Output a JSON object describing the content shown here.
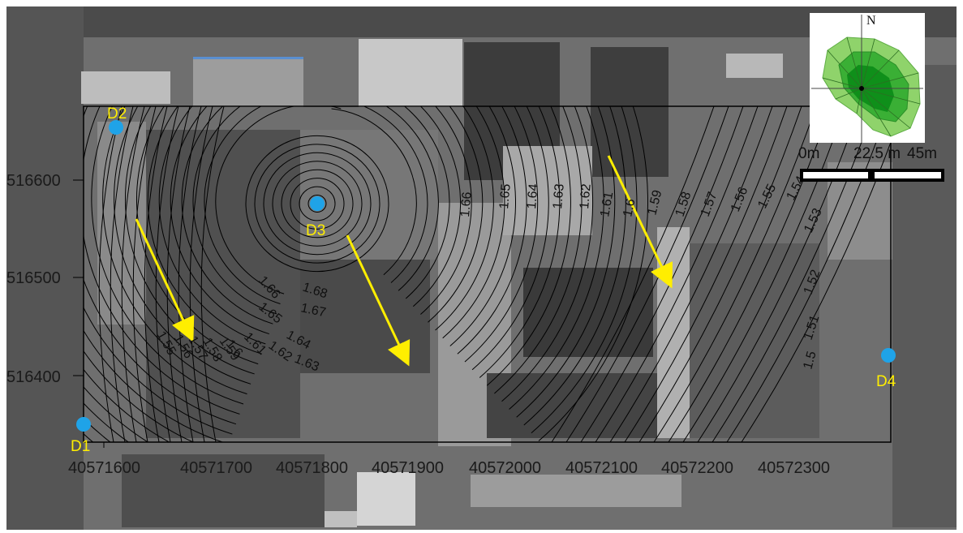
{
  "x_ticks": [
    "40571600",
    "40571700",
    "40571800",
    "40571900",
    "40572000",
    "40572100",
    "40572200",
    "40572300"
  ],
  "y_ticks": [
    "516600",
    "516500",
    "516400"
  ],
  "wells": [
    {
      "id": "D1",
      "label": "D1"
    },
    {
      "id": "D2",
      "label": "D2"
    },
    {
      "id": "D3",
      "label": "D3"
    },
    {
      "id": "D4",
      "label": "D4"
    }
  ],
  "contour_labels": [
    "1.55",
    "1.56",
    "1.57",
    "1.58",
    "1.59",
    "1.6",
    "1.61",
    "1.62",
    "1.63",
    "1.64",
    "1.65",
    "1.66",
    "1.67",
    "1.68",
    "1.66",
    "1.65",
    "1.64",
    "1.63",
    "1.62",
    "1.61",
    "1.6",
    "1.59",
    "1.58",
    "1.57",
    "1.56",
    "1.55",
    "1.54",
    "1.53",
    "1.52",
    "1.51",
    "1.5"
  ],
  "scale_bar": {
    "label_0": "0m",
    "label_mid": "22.5 m",
    "label_end": "45m"
  },
  "north_label": "N",
  "colors": {
    "well": "#1fa3e8",
    "well_label": "#ffee00",
    "arrow": "#ffee00",
    "contour": "#000000",
    "rose_light": "#8fd36b",
    "rose_mid": "#3aaf35",
    "rose_dark": "#0f8f1a"
  }
}
